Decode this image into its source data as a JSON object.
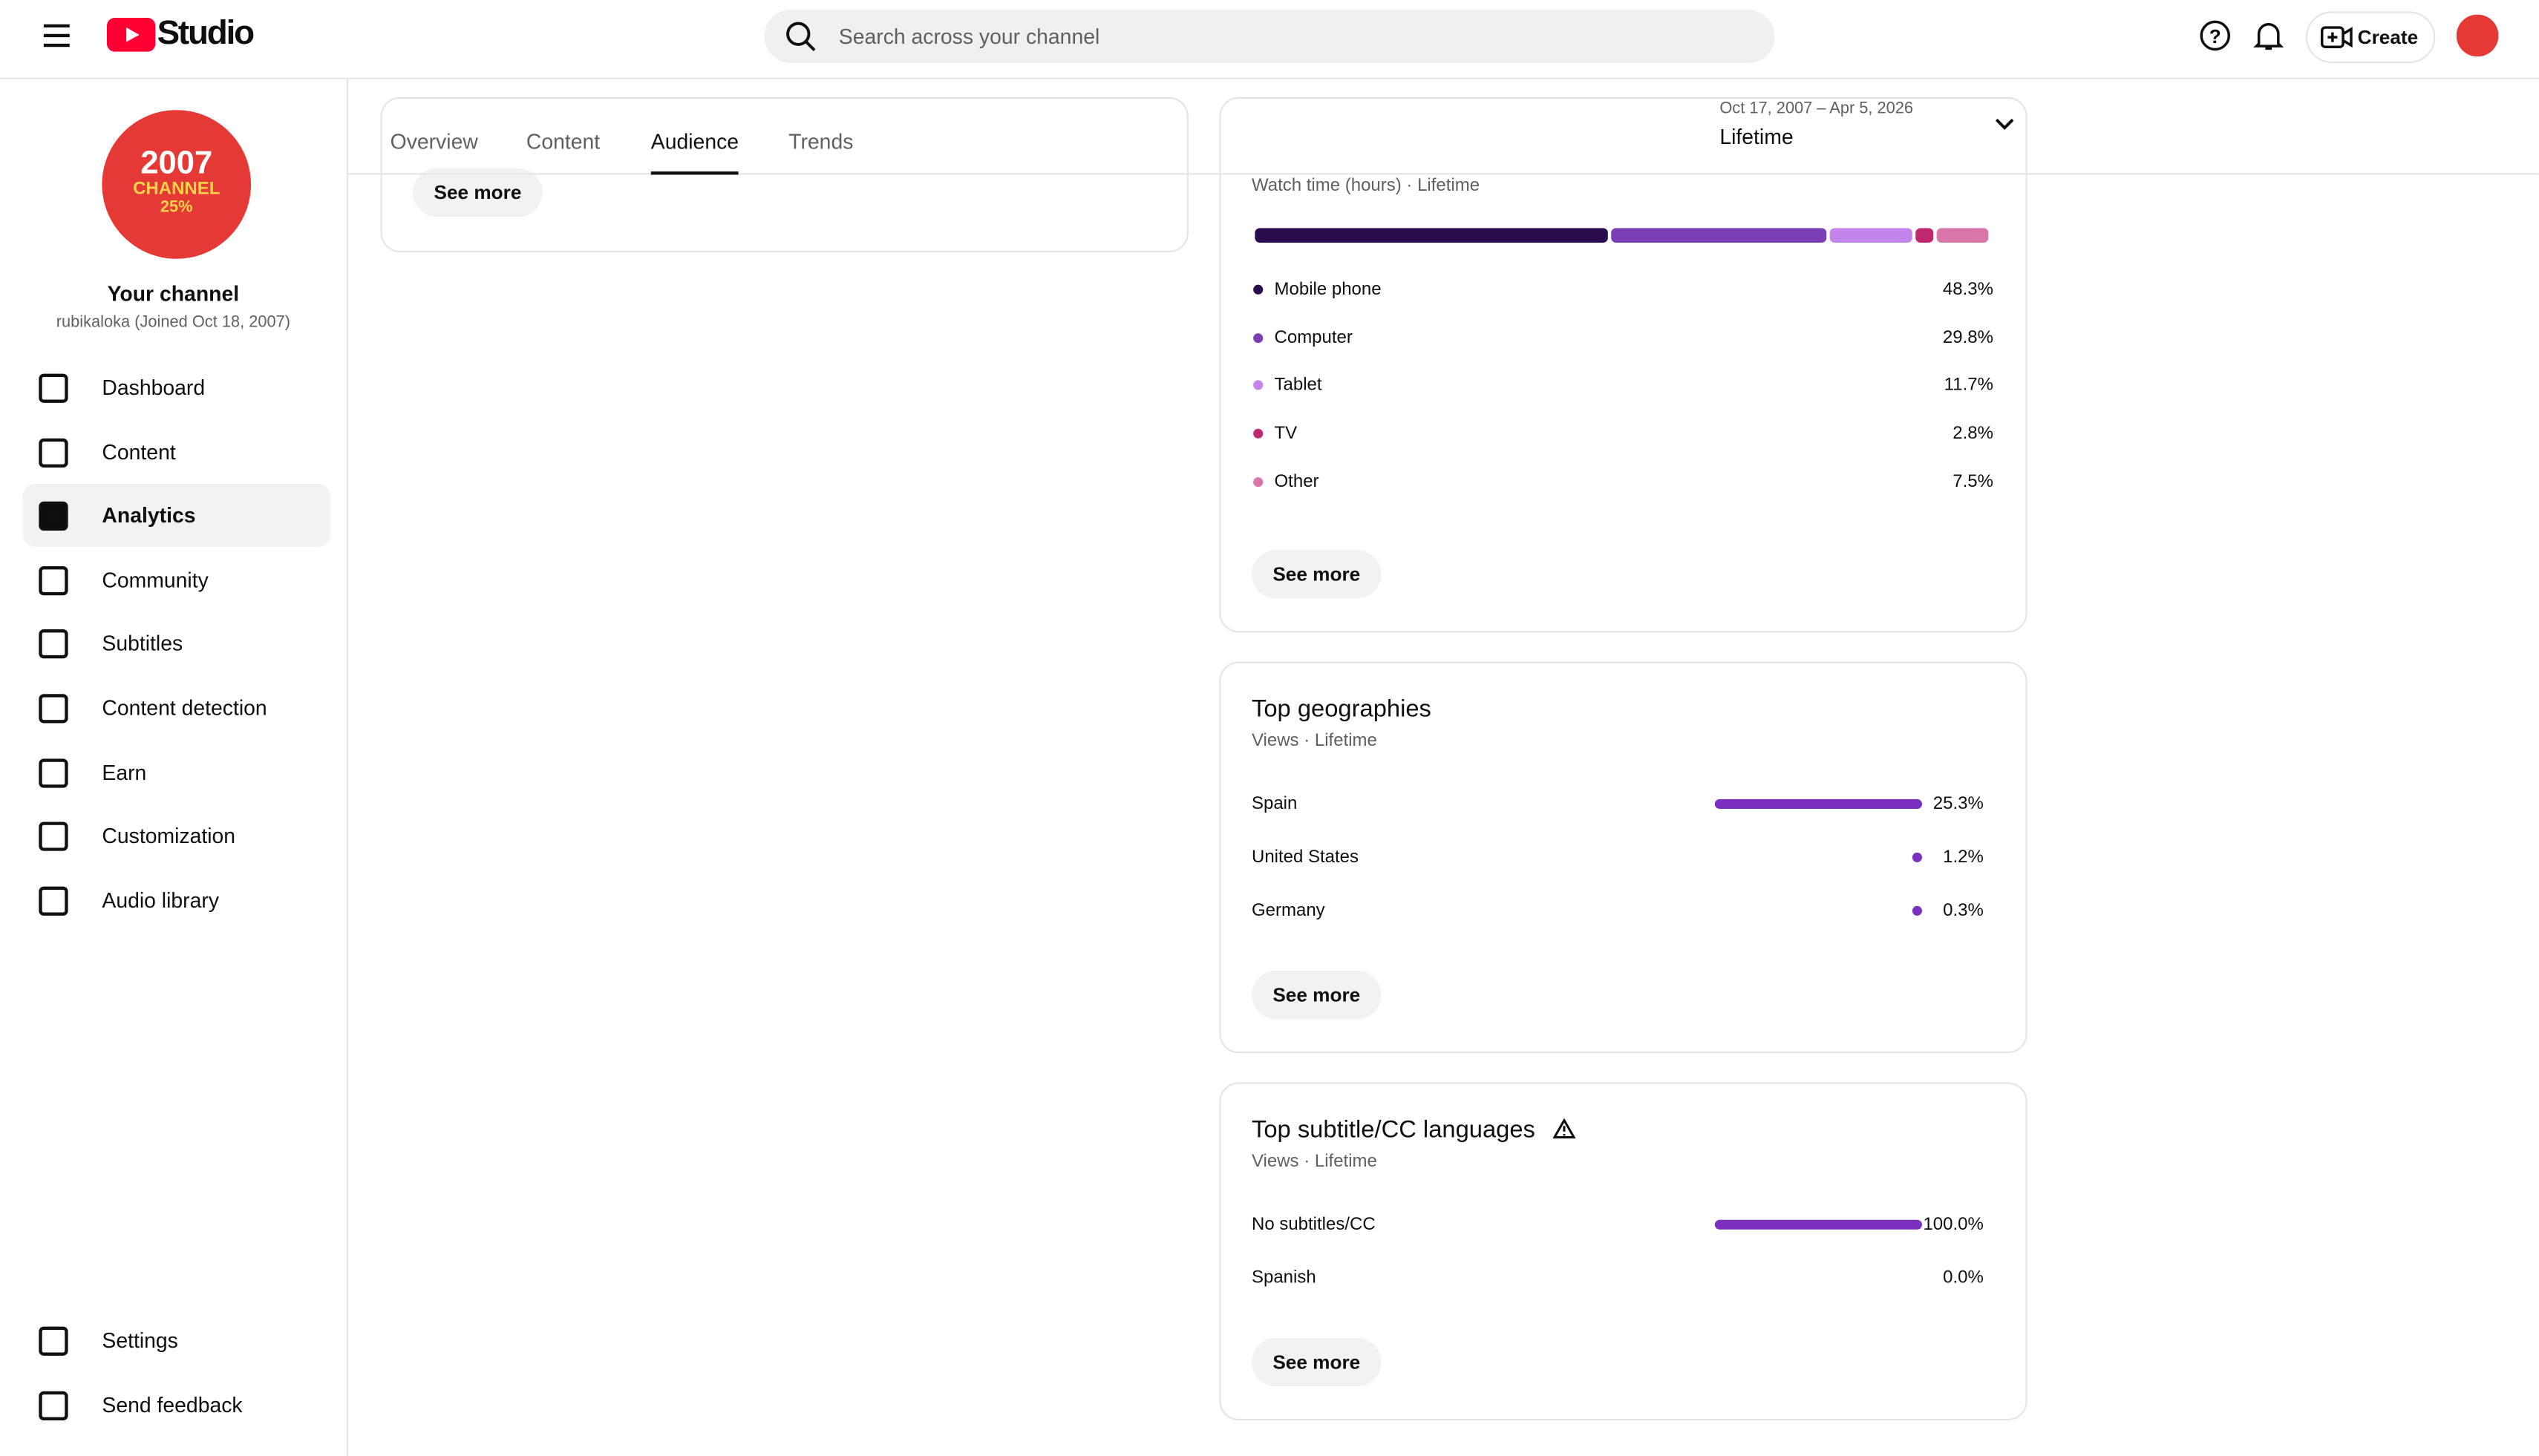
{
  "header": {
    "logo": "Studio",
    "search_placeholder": "Search across your channel",
    "create": "Create"
  },
  "sidebar": {
    "avatar_lines": [
      "2007",
      "CHANNEL",
      "25%"
    ],
    "channel_title": "Your channel",
    "channel_subtitle": "rubikaloka (Joined Oct 18, 2007)",
    "nav": [
      "Dashboard",
      "Content",
      "Analytics",
      "Community",
      "Subtitles",
      "Content detection",
      "Earn",
      "Customization",
      "Audio library"
    ],
    "active": "Analytics",
    "footer_nav": [
      "Settings",
      "Send feedback"
    ]
  },
  "tabs": {
    "items": [
      "Overview",
      "Content",
      "Audience",
      "Trends"
    ],
    "active": "Audience"
  },
  "date_range": {
    "range": "Oct 17, 2007 – Apr 5, 2026",
    "label": "Lifetime"
  },
  "see_more": "See more",
  "devices": {
    "subtitle": "Watch time (hours) · Lifetime",
    "items": [
      {
        "name": "Mobile phone",
        "color": "#2a0c4e",
        "share": {
          "value": 48.3,
          "label": "48.3%"
        }
      },
      {
        "name": "Computer",
        "color": "#7b3fb5",
        "share": {
          "value": 29.8,
          "label": "29.8%"
        }
      },
      {
        "name": "Tablet",
        "color": "#c384ec",
        "share": {
          "value": 11.7,
          "label": "11.7%"
        }
      },
      {
        "name": "TV",
        "color": "#c0286e",
        "share": {
          "value": 2.8,
          "label": "2.8%"
        }
      },
      {
        "name": "Other",
        "color": "#da75a9",
        "share": {
          "value": 7.5,
          "label": "7.5%"
        }
      }
    ]
  },
  "geographies": {
    "title": "Top geographies",
    "subtitle": "Views · Lifetime",
    "color": "#7b2fbf",
    "items": [
      {
        "name": "Spain",
        "share": {
          "value": 25.3,
          "label": "25.3%"
        }
      },
      {
        "name": "United States",
        "share": {
          "value": 1.2,
          "label": "1.2%"
        }
      },
      {
        "name": "Germany",
        "share": {
          "value": 0.3,
          "label": "0.3%"
        }
      }
    ]
  },
  "languages": {
    "title": "Top subtitle/CC languages",
    "subtitle": "Views · Lifetime",
    "color": "#7b2fbf",
    "items": [
      {
        "name": "No subtitles/CC",
        "share": {
          "value": 100.0,
          "label": "100.0%"
        }
      },
      {
        "name": "Spanish",
        "share": {
          "value": 0.0,
          "label": "0.0%"
        }
      }
    ]
  }
}
